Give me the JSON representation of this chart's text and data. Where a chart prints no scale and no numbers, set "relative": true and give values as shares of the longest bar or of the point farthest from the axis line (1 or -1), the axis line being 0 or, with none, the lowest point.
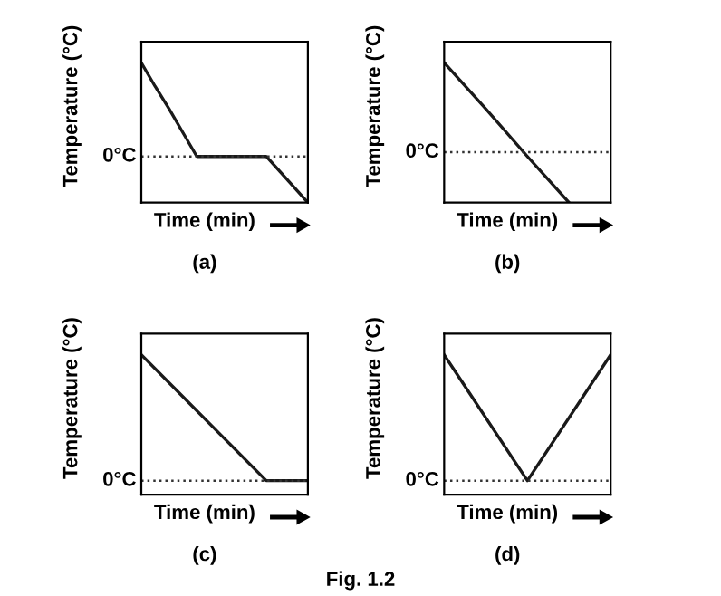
{
  "chart_data": [
    {
      "type": "line",
      "relative": true,
      "xlabel": "Time (min)",
      "ylabel": "Temperature (°C)",
      "categories": [
        null,
        null,
        null,
        null,
        null,
        null,
        null,
        null,
        null,
        null,
        null,
        null,
        null
      ],
      "marker": "none",
      "line_style": "solid",
      "series": [
        {
          "color": "#1a1a1a",
          "values": [
            1,
            0.83,
            0.67,
            0.5,
            0.33,
            0.33,
            0.33,
            0.33,
            0.33,
            0.33,
            0.22,
            0.11,
            0
          ]
        }
      ],
      "ref_lines": [
        {
          "axis": "y",
          "value": 0.33,
          "label": "0°C",
          "line_style": "dotted"
        }
      ],
      "annotations": [
        "(a)"
      ]
    },
    {
      "type": "line",
      "relative": true,
      "xlabel": "Time (min)",
      "ylabel": "Temperature (°C)",
      "categories": [
        null,
        null,
        null,
        null,
        null
      ],
      "marker": "none",
      "line_style": "solid",
      "series": [
        {
          "color": "#1a1a1a",
          "values": [
            1,
            0.67,
            0.33,
            0,
            null
          ]
        }
      ],
      "ref_lines": [
        {
          "axis": "y",
          "value": 0.36,
          "label": "0°C",
          "line_style": "dotted"
        }
      ],
      "annotations": [
        "(b)"
      ]
    },
    {
      "type": "line",
      "relative": true,
      "xlabel": "Time (min)",
      "ylabel": "Temperature (°C)",
      "categories": [
        null,
        null,
        null,
        null,
        null
      ],
      "marker": "none",
      "line_style": "solid",
      "series": [
        {
          "color": "#1a1a1a",
          "values": [
            1,
            0.7,
            0.4,
            0.1,
            0.1
          ]
        }
      ],
      "ref_lines": [
        {
          "axis": "y",
          "value": 0.1,
          "label": "0°C",
          "line_style": "dotted"
        }
      ],
      "annotations": [
        "(c)"
      ]
    },
    {
      "type": "line",
      "relative": true,
      "xlabel": "Time (min)",
      "ylabel": "Temperature (°C)",
      "categories": [
        null,
        null,
        null
      ],
      "marker": "none",
      "line_style": "solid",
      "series": [
        {
          "color": "#1a1a1a",
          "values": [
            1,
            0.1,
            1
          ]
        }
      ],
      "ref_lines": [
        {
          "axis": "y",
          "value": 0.1,
          "label": "0°C",
          "line_style": "dotted"
        }
      ],
      "annotations": [
        "(d)",
        "Fig. 1.2"
      ]
    }
  ]
}
